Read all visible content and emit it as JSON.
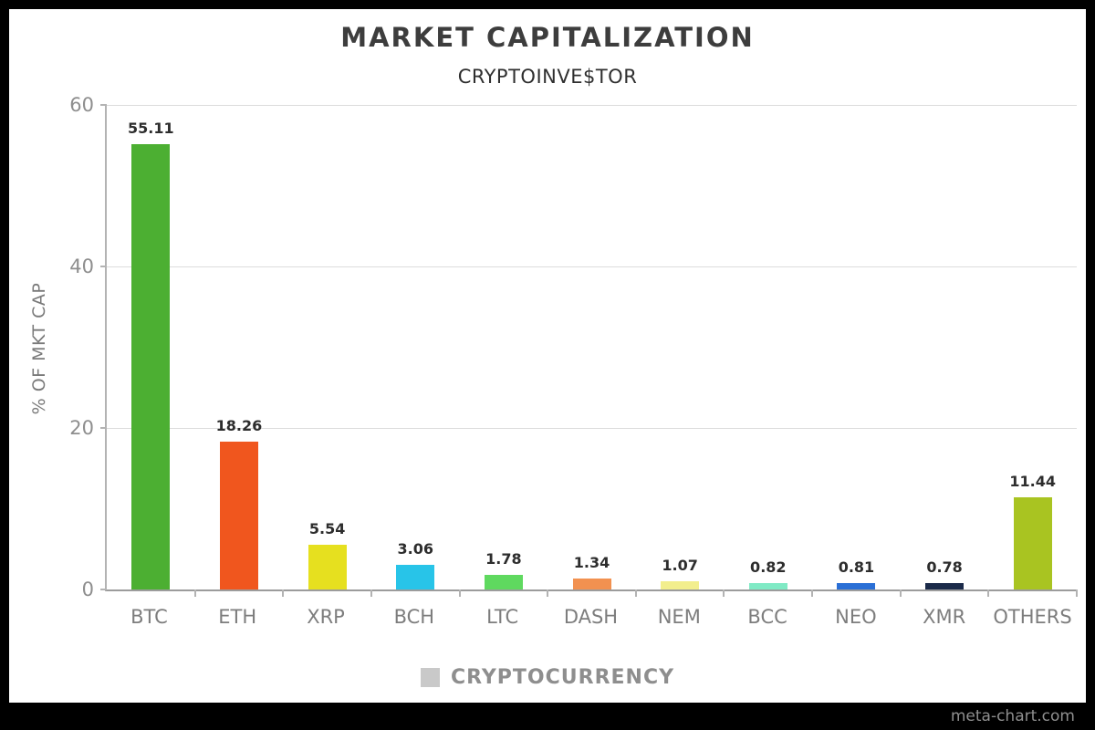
{
  "page": {
    "title": "MARKET CAPITALIZATION",
    "subtitle": "CRYPTOINVE$TOR",
    "legend_label": "CRYPTOCURRENCY",
    "watermark": "meta-chart.com"
  },
  "chart_data": {
    "type": "bar",
    "title": "MARKET CAPITALIZATION",
    "subtitle": "CRYPTOINVE$TOR",
    "categories": [
      "BTC",
      "ETH",
      "XRP",
      "BCH",
      "LTC",
      "DASH",
      "NEM",
      "BCC",
      "NEO",
      "XMR",
      "OTHERS"
    ],
    "values": [
      55.11,
      18.26,
      5.54,
      3.06,
      1.78,
      1.34,
      1.07,
      0.82,
      0.81,
      0.78,
      11.44
    ],
    "bar_colors": [
      "#4CAF32",
      "#F0561E",
      "#E6E01F",
      "#28C4E8",
      "#5FD95F",
      "#F29150",
      "#F2EE8D",
      "#80EAC5",
      "#2A6FD6",
      "#1B2A49",
      "#A9C421"
    ],
    "xlabel": "CRYPTOCURRENCY",
    "ylabel": "% OF MKT CAP",
    "yticks": [
      0,
      20,
      40,
      60
    ],
    "ylim": [
      0,
      60
    ],
    "grid": true,
    "legend_position": "bottom",
    "value_labels": true
  },
  "colors": {
    "background": "#000000",
    "canvas": "#ffffff",
    "grid": "#dcdcdc",
    "axis": "#b3b3b3",
    "tick_label": "#8e8e8e",
    "category_label": "#7d7d7d",
    "value_label": "#2d2d2d",
    "legend_swatch": "#c9c9c9",
    "legend_text": "#8e8e8e",
    "title": "#3d3d3d",
    "watermark": "#8f8f8f"
  }
}
